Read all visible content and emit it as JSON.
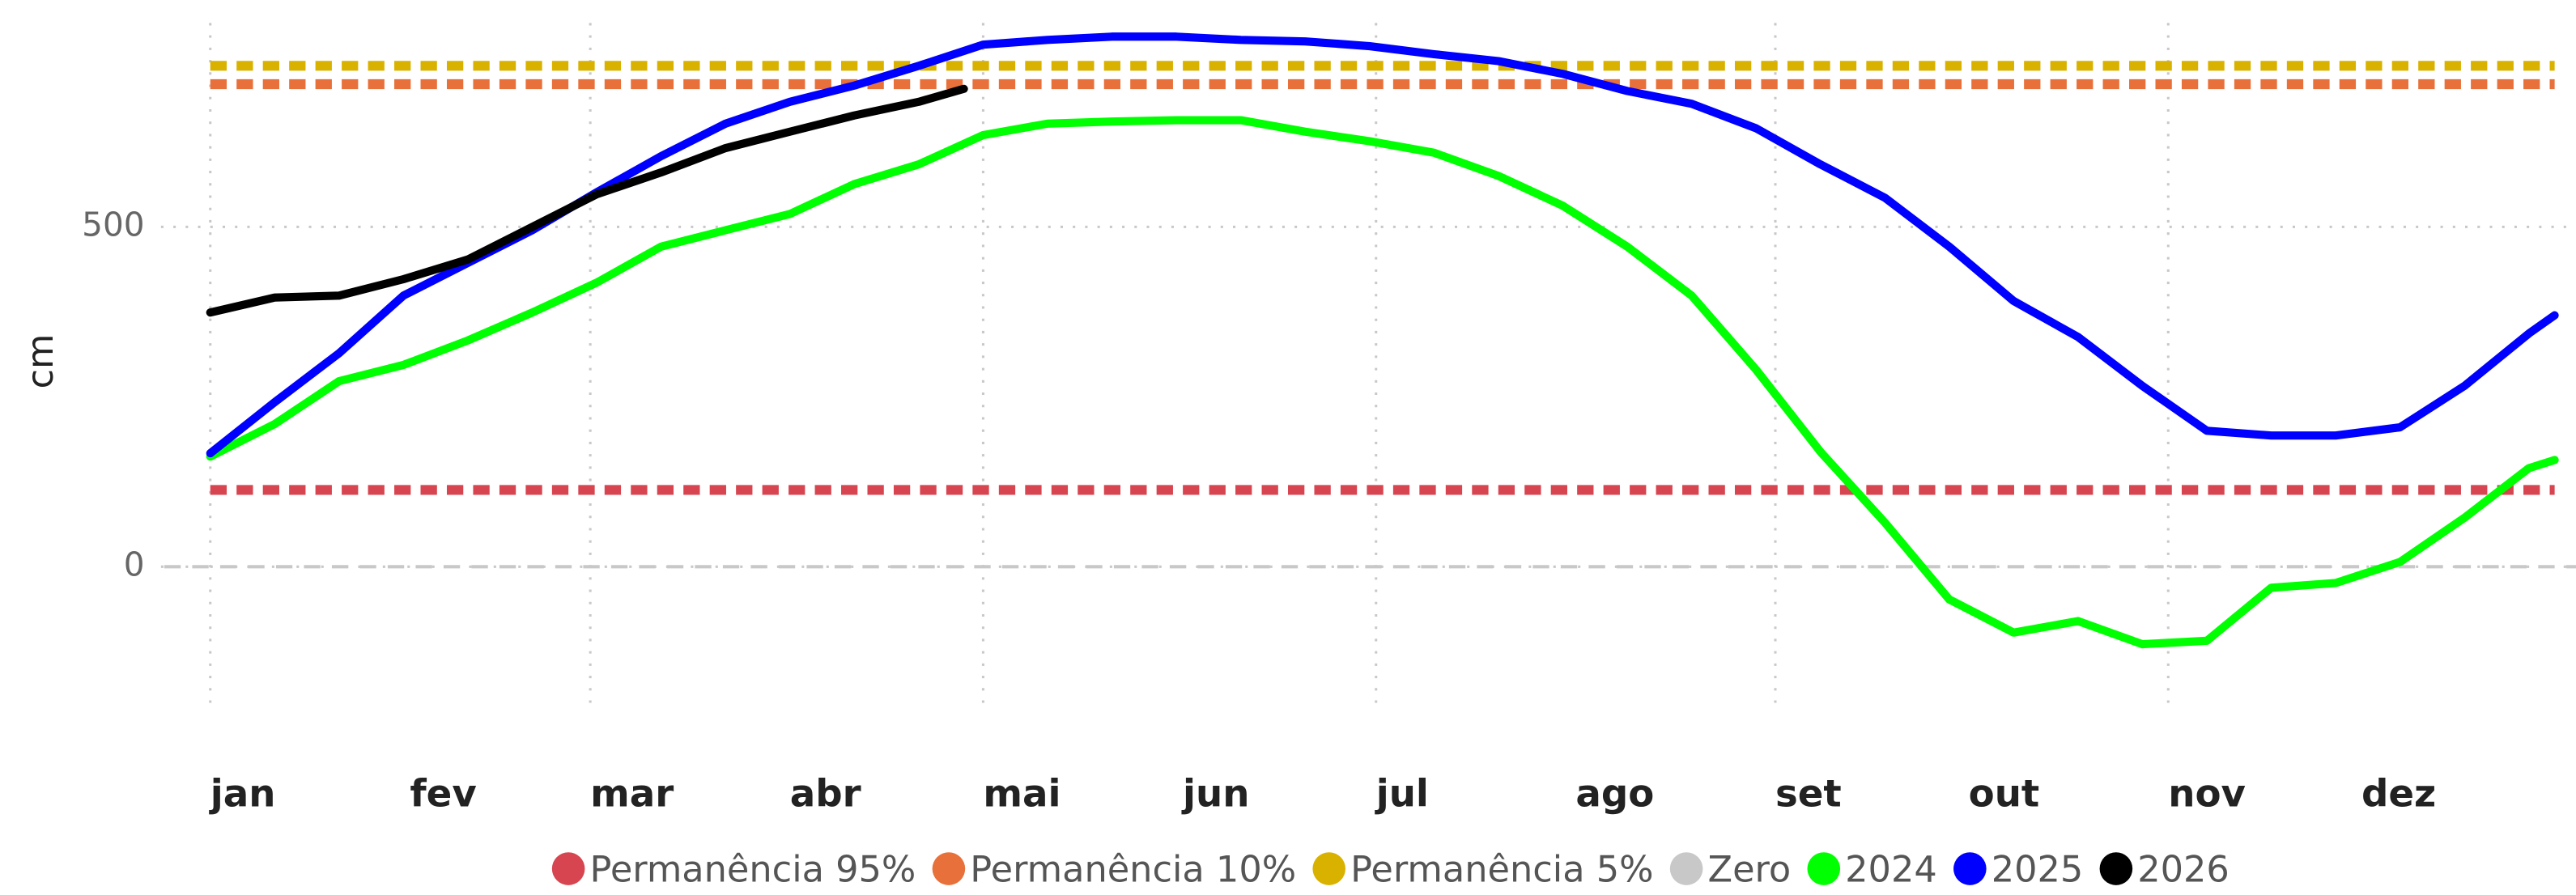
{
  "chart_data": {
    "type": "line",
    "y_label": "cm",
    "xlim": [
      1,
      365
    ],
    "xticks": [
      {
        "value": 1,
        "label": "jan"
      },
      {
        "value": 32,
        "label": "fev"
      },
      {
        "value": 60,
        "label": "mar"
      },
      {
        "value": 91,
        "label": "abr"
      },
      {
        "value": 121,
        "label": "mai"
      },
      {
        "value": 152,
        "label": "jun"
      },
      {
        "value": 182,
        "label": "jul"
      },
      {
        "value": 213,
        "label": "ago"
      },
      {
        "value": 244,
        "label": "set"
      },
      {
        "value": 274,
        "label": "out"
      },
      {
        "value": 305,
        "label": "nov"
      },
      {
        "value": 335,
        "label": "dez"
      }
    ],
    "ylim": [
      -210,
      800
    ],
    "yticks": [
      0,
      500
    ],
    "grid": true,
    "legend": "bottom",
    "series": [
      {
        "name": "Permanência 95%",
        "color": "#d64550",
        "style": "dashed",
        "value": 113
      },
      {
        "name": "Permanência 10%",
        "color": "#e8703a",
        "style": "dashed",
        "value": 710
      },
      {
        "name": "Permanência 5%",
        "color": "#d9b200",
        "style": "dashed",
        "value": 737
      },
      {
        "name": "Zero",
        "color": "#c8c8c8",
        "style": "dashed",
        "value": 0
      },
      {
        "name": "2024",
        "color": "#00ff00",
        "style": "solid",
        "x": [
          1,
          11,
          21,
          31,
          41,
          51,
          61,
          71,
          81,
          91,
          101,
          111,
          121,
          131,
          141,
          151,
          161,
          171,
          181,
          191,
          201,
          211,
          221,
          231,
          241,
          251,
          261,
          271,
          281,
          291,
          301,
          311,
          321,
          331,
          341,
          351,
          361,
          365
        ],
        "values": [
          162,
          210,
          273,
          297,
          333,
          374,
          418,
          471,
          495,
          519,
          563,
          592,
          635,
          652,
          655,
          657,
          657,
          640,
          626,
          609,
          575,
          531,
          471,
          399,
          290,
          169,
          65,
          -48,
          -97,
          -80,
          -114,
          -109,
          -31,
          -24,
          7,
          72,
          145,
          157
        ]
      },
      {
        "name": "2025",
        "color": "#0000ff",
        "style": "solid",
        "x": [
          1,
          11,
          21,
          31,
          41,
          51,
          61,
          71,
          81,
          91,
          101,
          111,
          121,
          131,
          141,
          151,
          161,
          171,
          181,
          191,
          201,
          211,
          221,
          231,
          241,
          251,
          261,
          271,
          281,
          291,
          301,
          311,
          321,
          331,
          341,
          351,
          361,
          365
        ],
        "values": [
          167,
          242,
          314,
          399,
          447,
          495,
          551,
          604,
          652,
          684,
          708,
          737,
          768,
          775,
          780,
          780,
          775,
          773,
          766,
          754,
          744,
          725,
          700,
          681,
          645,
          592,
          543,
          471,
          391,
          338,
          266,
          200,
          193,
          193,
          205,
          266,
          343,
          370
        ]
      },
      {
        "name": "2026",
        "color": "#000000",
        "style": "solid",
        "x": [
          1,
          11,
          21,
          31,
          41,
          51,
          61,
          71,
          81,
          91,
          101,
          111,
          118
        ],
        "values": [
          374,
          396,
          399,
          423,
          452,
          500,
          548,
          580,
          616,
          640,
          664,
          684,
          703
        ]
      }
    ]
  }
}
